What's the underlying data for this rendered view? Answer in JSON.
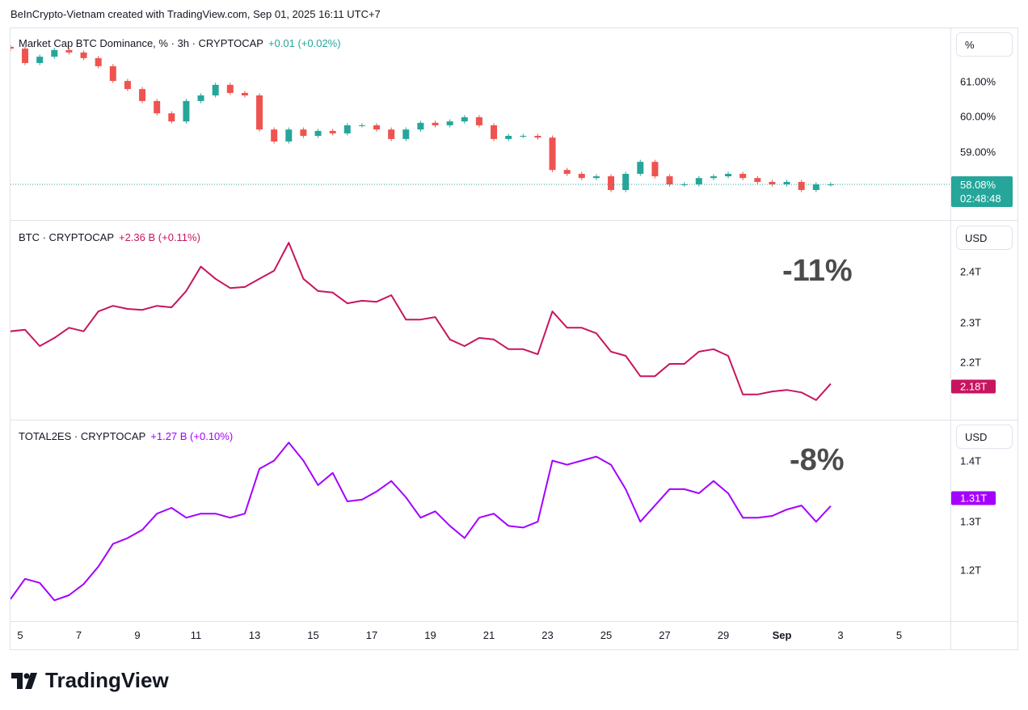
{
  "credit": "BeInCrypto-Vietnam created with TradingView.com, Sep 01, 2025 16:11 UTC+7",
  "brand": "TradingView",
  "colors": {
    "up": "#26a69a",
    "down": "#ef5350",
    "btc": "#c8155f",
    "total2es": "#a400ff",
    "annotation": "#4b4b4b"
  },
  "panes": [
    {
      "legend": "Market Cap BTC Dominance, % · 3h · CRYPTOCAP",
      "change": "+0.01 (+0.02%)",
      "unit": "%",
      "ticks": [
        "61.00%",
        "60.00%",
        "59.00%"
      ],
      "current": "58.08%",
      "countdown": "02:48:48"
    },
    {
      "legend": "BTC · CRYPTOCAP",
      "change": "+2.36 B (+0.11%)",
      "unit": "USD",
      "ticks": [
        "2.4T",
        "2.3T",
        "2.2T"
      ],
      "current": "2.18T",
      "annotation": "-11%"
    },
    {
      "legend": "TOTAL2ES · CRYPTOCAP",
      "change": "+1.27 B (+0.10%)",
      "unit": "USD",
      "ticks": [
        "1.4T",
        "1.3T",
        "1.2T"
      ],
      "current": "1.31T",
      "annotation": "-8%"
    }
  ],
  "x_ticks": [
    "5",
    "7",
    "9",
    "11",
    "13",
    "15",
    "17",
    "19",
    "21",
    "23",
    "25",
    "27",
    "29",
    "Sep",
    "3",
    "5"
  ],
  "chart_data": [
    {
      "type": "candlestick",
      "title": "Market Cap BTC Dominance, % · 3h · CRYPTOCAP",
      "ylabel": "%",
      "ylim": [
        57.5,
        62.2
      ],
      "grid": false,
      "x_start": "2025-08-04 16:00",
      "interval_hours": 12,
      "values": [
        61.94,
        61.53,
        61.71,
        61.9,
        61.83,
        61.67,
        61.44,
        61.02,
        60.79,
        60.45,
        60.1,
        59.87,
        60.45,
        60.61,
        60.91,
        60.68,
        60.61,
        59.64,
        59.3,
        59.64,
        59.46,
        59.6,
        59.53,
        59.76,
        59.76,
        59.64,
        59.37,
        59.64,
        59.83,
        59.76,
        59.87,
        59.99,
        59.76,
        59.37,
        59.46,
        59.46,
        59.41,
        58.49,
        58.38,
        58.26,
        58.31,
        57.92,
        58.38,
        58.72,
        58.31,
        58.08,
        58.08,
        58.26,
        58.31,
        58.38,
        58.26,
        58.15,
        58.08,
        58.15,
        57.92,
        58.08,
        58.08
      ]
    },
    {
      "type": "line",
      "title": "BTC · CRYPTOCAP",
      "ylabel": "USD",
      "ylim": [
        2.1,
        2.48
      ],
      "grid": false,
      "x_start": "2025-08-04 16:00",
      "interval_hours": 12,
      "values": [
        2.283,
        2.286,
        2.254,
        2.27,
        2.29,
        2.283,
        2.322,
        2.333,
        2.327,
        2.325,
        2.333,
        2.33,
        2.362,
        2.41,
        2.386,
        2.368,
        2.37,
        2.386,
        2.402,
        2.457,
        2.386,
        2.362,
        2.359,
        2.338,
        2.343,
        2.341,
        2.354,
        2.306,
        2.306,
        2.311,
        2.267,
        2.254,
        2.27,
        2.267,
        2.248,
        2.248,
        2.238,
        2.322,
        2.29,
        2.29,
        2.279,
        2.243,
        2.235,
        2.195,
        2.195,
        2.219,
        2.219,
        2.243,
        2.248,
        2.235,
        2.159,
        2.159,
        2.165,
        2.168,
        2.163,
        2.148,
        2.18
      ]
    },
    {
      "type": "line",
      "title": "TOTAL2ES · CRYPTOCAP",
      "ylabel": "USD",
      "ylim": [
        1.13,
        1.44
      ],
      "grid": false,
      "x_start": "2025-08-04 16:00",
      "interval_hours": 12,
      "values": [
        1.15,
        1.185,
        1.178,
        1.148,
        1.157,
        1.176,
        1.206,
        1.245,
        1.255,
        1.269,
        1.297,
        1.307,
        1.29,
        1.297,
        1.297,
        1.29,
        1.297,
        1.374,
        1.388,
        1.419,
        1.388,
        1.346,
        1.367,
        1.318,
        1.321,
        1.335,
        1.353,
        1.325,
        1.29,
        1.301,
        1.276,
        1.255,
        1.29,
        1.297,
        1.276,
        1.273,
        1.283,
        1.388,
        1.381,
        1.388,
        1.395,
        1.381,
        1.339,
        1.283,
        1.311,
        1.339,
        1.339,
        1.332,
        1.353,
        1.332,
        1.29,
        1.29,
        1.293,
        1.304,
        1.311,
        1.283,
        1.31
      ]
    }
  ]
}
